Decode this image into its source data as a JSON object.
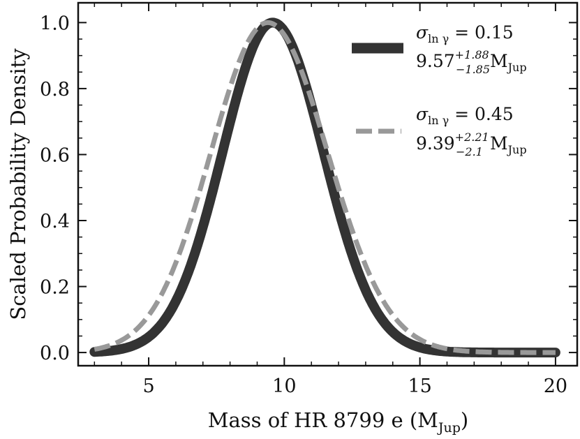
{
  "chart_data": {
    "type": "line",
    "xlabel": "Mass of HR 8799 e (M",
    "xlabel_sub": "Jup",
    "xlabel_close": ")",
    "ylabel": "Scaled Probability Density",
    "xlim": [
      2.4,
      20.8
    ],
    "ylim": [
      -0.04,
      1.06
    ],
    "xticks": [
      5,
      10,
      15,
      20
    ],
    "yticks": [
      0.0,
      0.2,
      0.4,
      0.6,
      0.8,
      1.0
    ],
    "xtick_labels": [
      "5",
      "10",
      "15",
      "20"
    ],
    "ytick_labels": [
      "0.0",
      "0.2",
      "0.4",
      "0.6",
      "0.8",
      "1.0"
    ],
    "grid": false,
    "legend_position": "top-right",
    "series": [
      {
        "legend_line1": "σ",
        "legend_line1_sub": "ln γ",
        "legend_line1_rest": " = 0.15",
        "legend_value": "9.57",
        "legend_sup": "+1.88",
        "legend_subscript": "−1.85",
        "legend_unit": "M",
        "legend_unit_sub": "Jup",
        "color": "#333333",
        "style": "solid",
        "peak": 9.57,
        "err_plus": 1.88,
        "err_minus": 1.85,
        "x": [
          3.0,
          3.5,
          4.0,
          4.5,
          5.0,
          5.5,
          6.0,
          6.5,
          7.0,
          7.5,
          8.0,
          8.5,
          9.0,
          9.57,
          10.0,
          10.5,
          11.0,
          11.5,
          12.0,
          12.5,
          13.0,
          13.5,
          14.0,
          14.5,
          15.0,
          15.5,
          16.0,
          17.0,
          18.0,
          19.0,
          20.0
        ],
        "y": [
          0.002,
          0.005,
          0.013,
          0.03,
          0.063,
          0.121,
          0.212,
          0.336,
          0.484,
          0.637,
          0.778,
          0.888,
          0.967,
          1.0,
          0.976,
          0.885,
          0.744,
          0.578,
          0.417,
          0.28,
          0.175,
          0.102,
          0.055,
          0.028,
          0.013,
          0.006,
          0.003,
          0.001,
          0.0,
          0.0,
          0.0
        ]
      },
      {
        "legend_line1": "σ",
        "legend_line1_sub": "ln γ",
        "legend_line1_rest": " = 0.45",
        "legend_value": "9.39",
        "legend_sup": "+2.21",
        "legend_subscript": "−2.1",
        "legend_unit": "M",
        "legend_unit_sub": "Jup",
        "color": "#999999",
        "style": "dashed",
        "peak": 9.39,
        "err_plus": 2.21,
        "err_minus": 2.1,
        "x": [
          3.0,
          3.5,
          4.0,
          4.5,
          5.0,
          5.5,
          6.0,
          6.5,
          7.0,
          7.5,
          8.0,
          8.5,
          9.0,
          9.39,
          10.0,
          10.5,
          11.0,
          11.5,
          12.0,
          12.5,
          13.0,
          13.5,
          14.0,
          14.5,
          15.0,
          15.5,
          16.0,
          17.0,
          18.0,
          19.0,
          20.0
        ],
        "y": [
          0.01,
          0.022,
          0.045,
          0.085,
          0.147,
          0.236,
          0.352,
          0.489,
          0.633,
          0.77,
          0.883,
          0.962,
          0.998,
          1.0,
          0.956,
          0.874,
          0.765,
          0.64,
          0.51,
          0.387,
          0.28,
          0.193,
          0.126,
          0.078,
          0.046,
          0.026,
          0.014,
          0.004,
          0.001,
          0.0,
          0.0
        ]
      }
    ]
  }
}
